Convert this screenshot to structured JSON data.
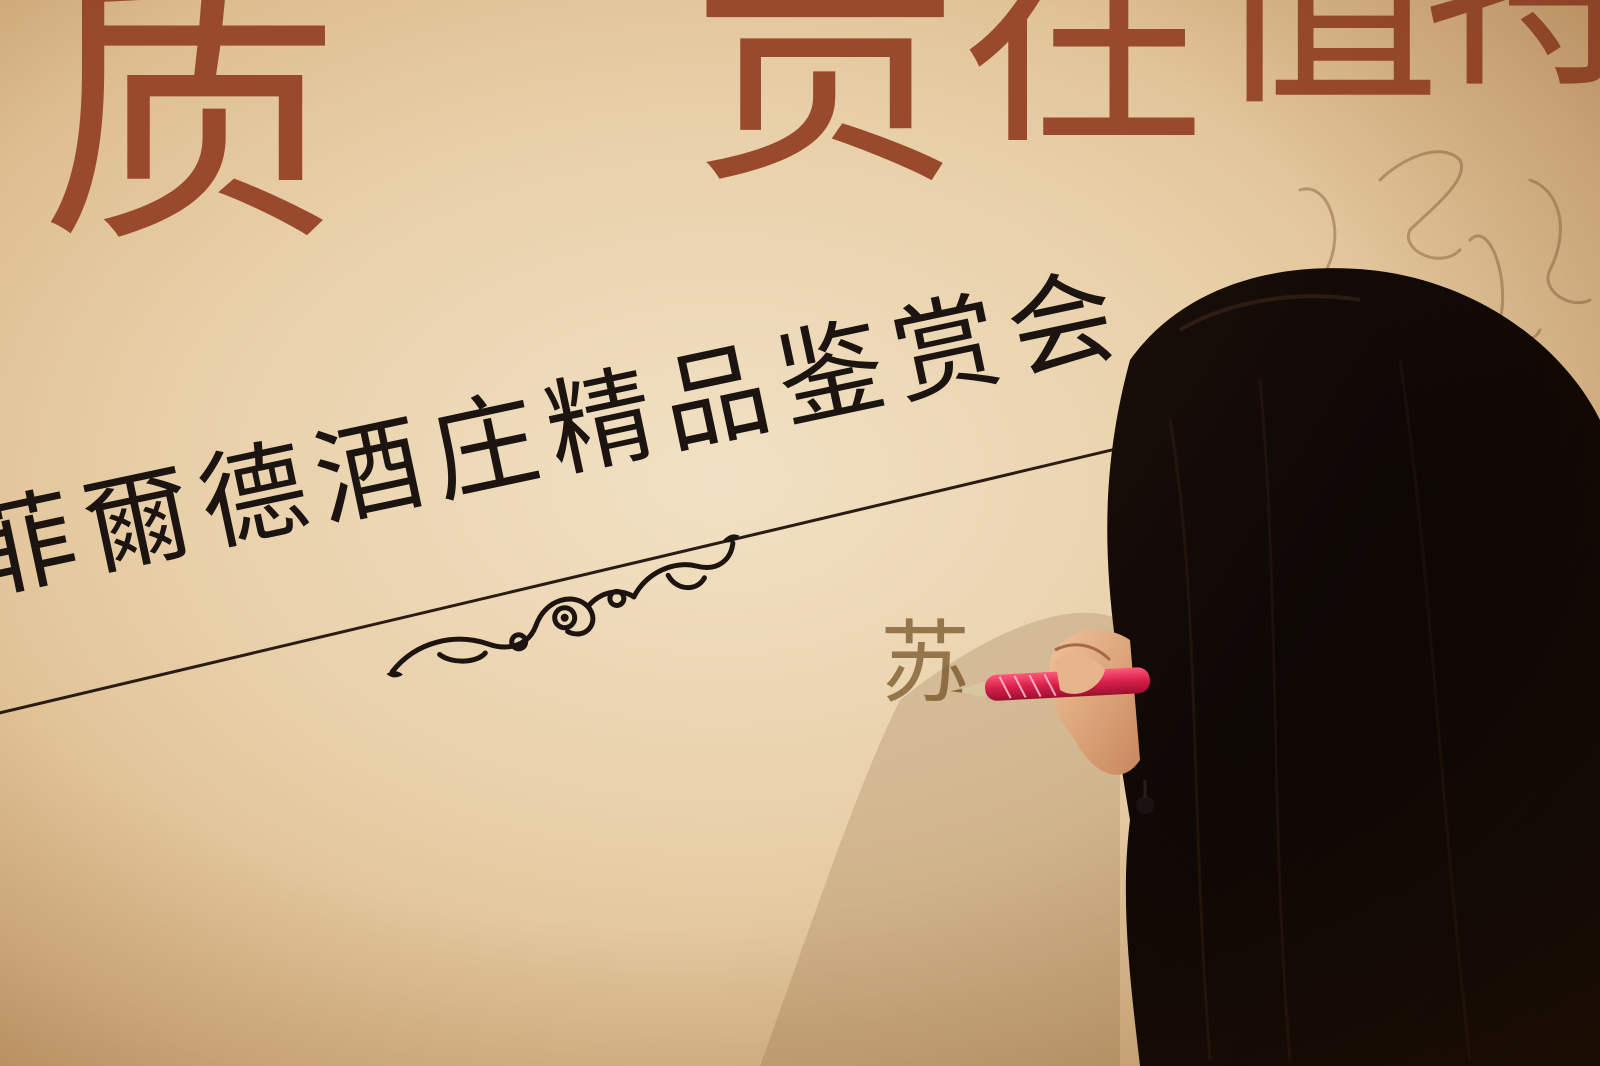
{
  "banner": {
    "char_1": "质",
    "char_2": "贡",
    "char_3": "在",
    "char_4": "值",
    "char_5": "特",
    "subtitle": "菲爾德酒庄精品鉴赏会",
    "signature_char": "苏"
  },
  "colors": {
    "banner_background": "#ecd5b0",
    "headline_red": "#9a4a2c",
    "subtitle_black": "#1b1410",
    "hair": "#0e0806",
    "marker_red": "#e0305a"
  },
  "icons": {
    "ornament": "flourish-ornament-icon"
  }
}
